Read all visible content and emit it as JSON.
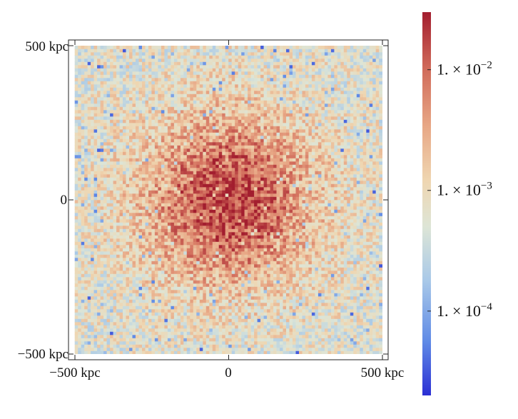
{
  "chart_data": {
    "type": "heatmap",
    "title": "",
    "xlabel": "",
    "ylabel": "",
    "xlim": [
      -500,
      500
    ],
    "ylim": [
      -500,
      500
    ],
    "units": "kpc",
    "x_ticks": [
      {
        "value": -500,
        "label": "−500 kpc"
      },
      {
        "value": 0,
        "label": "0"
      },
      {
        "value": 500,
        "label": "500 kpc"
      }
    ],
    "y_ticks": [
      {
        "value": 500,
        "label": "500 kpc"
      },
      {
        "value": 0,
        "label": "0"
      },
      {
        "value": -500,
        "label": "−500 kpc"
      }
    ],
    "colorbar": {
      "scale": "log",
      "range": [
        2e-05,
        0.03
      ],
      "ticks": [
        {
          "value": 0.01,
          "mantissa": "1.",
          "exponent": "−2"
        },
        {
          "value": 0.001,
          "mantissa": "1.",
          "exponent": "−3"
        },
        {
          "value": 0.0001,
          "mantissa": "1.",
          "exponent": "−4"
        }
      ],
      "colormap": [
        "#2b2fd4",
        "#5f8ae6",
        "#a9c9e8",
        "#dde5d6",
        "#efd6b1",
        "#e8a886",
        "#d16c5b",
        "#a31e2f"
      ]
    },
    "field": {
      "description_free": true,
      "center": [
        0,
        0
      ],
      "core_radius": 280,
      "center_value": 0.02,
      "edge_value": 0.0006,
      "grid_on": false
    }
  }
}
